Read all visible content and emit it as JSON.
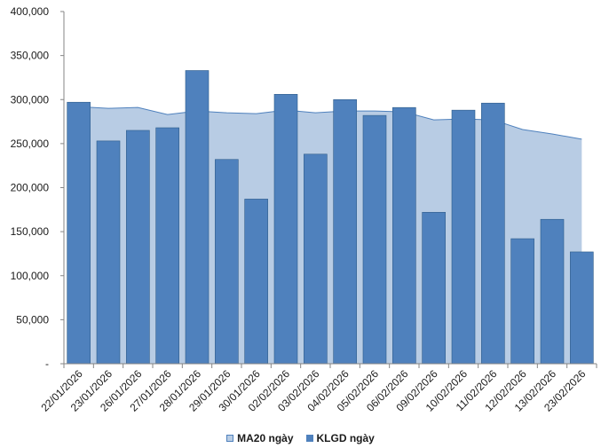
{
  "chart_data": {
    "type": "bar",
    "categories": [
      "22/01/2026",
      "23/01/2026",
      "26/01/2026",
      "27/01/2026",
      "28/01/2026",
      "29/01/2026",
      "30/01/2026",
      "02/02/2026",
      "03/02/2026",
      "04/02/2026",
      "05/02/2026",
      "06/02/2026",
      "09/02/2026",
      "10/02/2026",
      "11/02/2026",
      "12/02/2026",
      "13/02/2026",
      "23/02/2026"
    ],
    "series": [
      {
        "name": "MA20 ngày",
        "type": "area",
        "values": [
          292000,
          290000,
          291000,
          283000,
          287000,
          285000,
          284000,
          288000,
          285000,
          287000,
          287000,
          286000,
          277000,
          278000,
          277000,
          266000,
          261000,
          255000
        ]
      },
      {
        "name": "KLGD ngày",
        "type": "bar",
        "values": [
          297000,
          253000,
          265000,
          268000,
          333000,
          232000,
          187000,
          306000,
          238000,
          300000,
          282000,
          291000,
          172000,
          288000,
          296000,
          142000,
          164000,
          127000
        ]
      }
    ],
    "ylim": [
      0,
      400000
    ],
    "yticks": [
      0,
      50000,
      100000,
      150000,
      200000,
      250000,
      300000,
      350000,
      400000
    ],
    "ytick_labels": [
      "-",
      "50,000",
      "100,000",
      "150,000",
      "200,000",
      "250,000",
      "300,000",
      "350,000",
      "400,000"
    ],
    "legend_position": "bottom",
    "grid": false,
    "colors": {
      "area_fill": "#B8CCE4",
      "area_stroke": "#4F81BD",
      "bar_fill": "#4F81BD",
      "bar_stroke": "#2E5C8A",
      "axis": "#868686"
    }
  }
}
